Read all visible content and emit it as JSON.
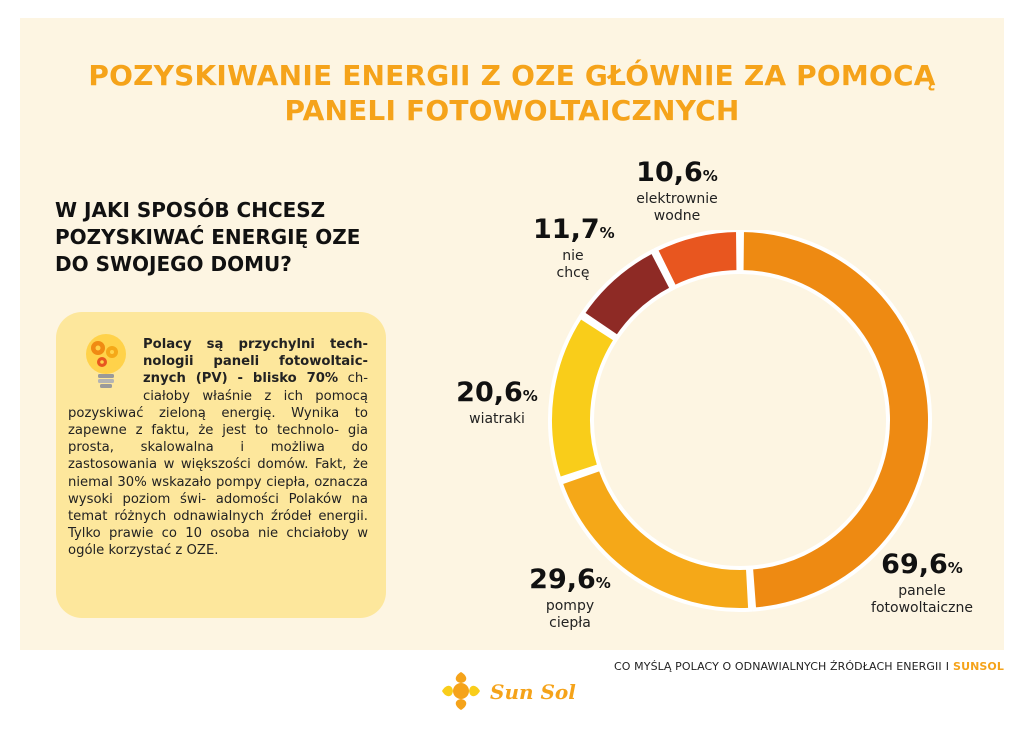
{
  "title_line1": "POZYSKIWANIE ENERGII Z OZE GŁÓWNIE ZA POMOCĄ",
  "title_line2": "PANELI FOTOWOLTAICZNYCH",
  "question_lines": [
    "W JAKI SPOSÓB CHCESZ",
    "POZYSKIWAĆ ENERGIĘ OZE",
    "DO SWOJEGO DOMU?"
  ],
  "infobox": {
    "bold_text": "Polacy są przychylni tech- nologii paneli fotowoltaic- znych (PV) - blisko 70%",
    "body_text": " ch- ciałoby właśnie z ich pomocą pozyskiwać zieloną energię. Wynika to zapewne z faktu, że jest to technolo- gia prosta, skalowalna i możliwa do zastosowania w większości domów. Fakt, że niemal 30% wskazało pompy ciepła, oznacza wysoki poziom świ- adomości Polaków na temat różnych odnawialnych źródeł energii. Tylko prawie co 10 osoba nie chciałoby w ogóle korzystać z OZE.",
    "icon": "lightbulb-gears-icon"
  },
  "chart_data": {
    "type": "donut",
    "unit": "%",
    "slices": [
      {
        "label": "panele fotowoltaiczne",
        "value": 69.6,
        "display": "69,6",
        "color": "#ee8a12"
      },
      {
        "label": "pompy ciepła",
        "value": 29.6,
        "display": "29,6",
        "color": "#f5a818"
      },
      {
        "label": "wiatraki",
        "value": 20.6,
        "display": "20,6",
        "color": "#f9cd1a"
      },
      {
        "label": "nie chcę",
        "value": 11.7,
        "display": "11,7",
        "color": "#8e2a25"
      },
      {
        "label": "elektrownie wodne",
        "value": 10.6,
        "display": "10,6",
        "color": "#e8561f"
      }
    ]
  },
  "labels": {
    "pv": {
      "pct": "69,6",
      "cat1": "panele",
      "cat2": "fotowoltaiczne"
    },
    "pompy": {
      "pct": "29,6",
      "cat1": "pompy",
      "cat2": "ciepła"
    },
    "wiatraki": {
      "pct": "20,6",
      "cat1": "wiatraki"
    },
    "nie": {
      "pct": "11,7",
      "cat1": "nie",
      "cat2": "chcę"
    },
    "wodne": {
      "pct": "10,6",
      "cat1": "elektrownie",
      "cat2": "wodne"
    },
    "percent_sign": "%"
  },
  "footer": {
    "text": "CO MYŚLĄ POLACY O ODNAWIALNYCH ŹRÓDŁACH ENERGII",
    "separator": "I",
    "brand": "SUNSOL"
  },
  "logo_text": "Sun Sol"
}
